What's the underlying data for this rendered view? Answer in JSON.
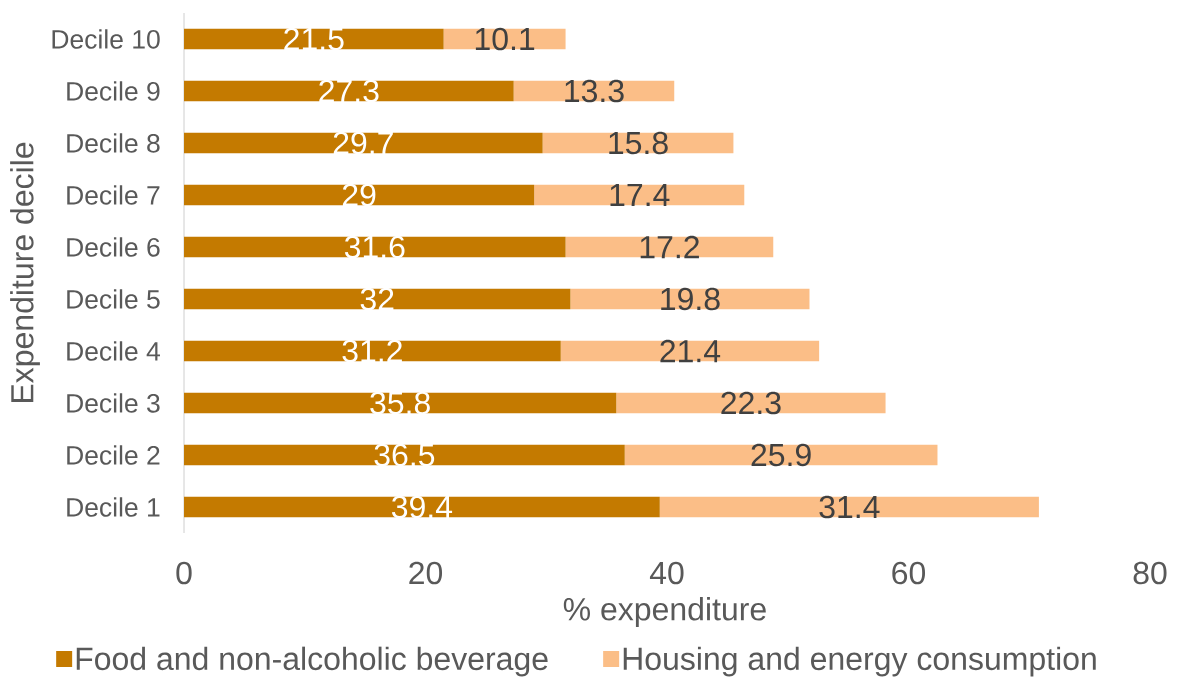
{
  "chart_data": {
    "type": "bar",
    "orientation": "horizontal",
    "stacked": true,
    "xlabel": "% expenditure",
    "ylabel": "Expenditure decile",
    "categories": [
      "Decile 10",
      "Decile 9",
      "Decile 8",
      "Decile 7",
      "Decile 6",
      "Decile 5",
      "Decile 4",
      "Decile 3",
      "Decile 2",
      "Decile 1"
    ],
    "series": [
      {
        "name": "Food and non-alcoholic beverage",
        "color": "#c47a00",
        "values": [
          21.5,
          27.3,
          29.7,
          29,
          31.6,
          32,
          31.2,
          35.8,
          36.5,
          39.4
        ]
      },
      {
        "name": "Housing and energy consumption",
        "color": "#fbbe87",
        "values": [
          10.1,
          13.3,
          15.8,
          17.4,
          17.2,
          19.8,
          21.4,
          22.3,
          25.9,
          31.4
        ]
      }
    ],
    "xlim": [
      0,
      80
    ],
    "xticks": [
      0,
      20,
      40,
      60,
      80
    ],
    "data_labels": true,
    "legend": "bottom"
  }
}
